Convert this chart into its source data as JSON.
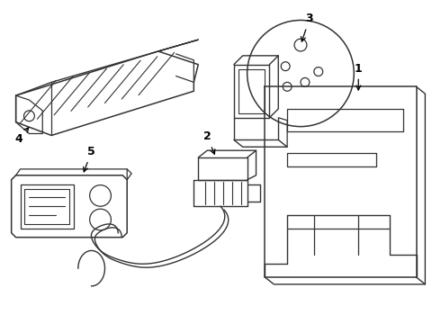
{
  "background_color": "#ffffff",
  "line_color": "#333333",
  "line_width": 1.0,
  "fig_width": 4.9,
  "fig_height": 3.6,
  "dpi": 100
}
